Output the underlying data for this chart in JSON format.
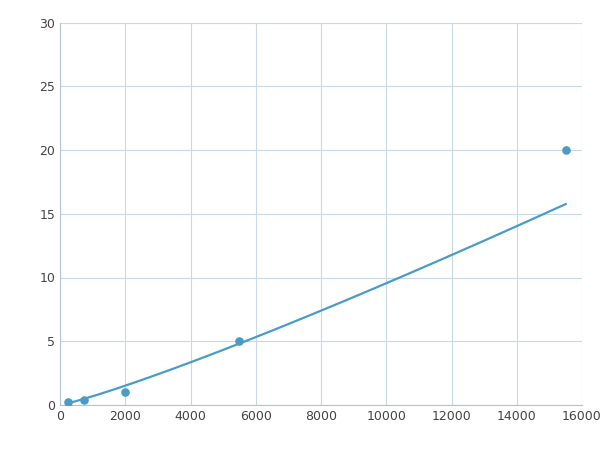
{
  "x_data": [
    250,
    750,
    2000,
    5500,
    15500
  ],
  "y_data": [
    0.2,
    0.4,
    1.0,
    5.0,
    20.0
  ],
  "line_color": "#4a9cc7",
  "marker_color": "#4a9cc7",
  "marker_size": 5,
  "line_width": 1.6,
  "xlim": [
    0,
    16000
  ],
  "ylim": [
    0,
    30
  ],
  "xticks": [
    0,
    2000,
    4000,
    6000,
    8000,
    10000,
    12000,
    14000,
    16000
  ],
  "yticks": [
    0,
    5,
    10,
    15,
    20,
    25,
    30
  ],
  "grid_color": "#c8d8e8",
  "background_color": "#ffffff",
  "figsize": [
    6.0,
    4.5
  ],
  "dpi": 100
}
